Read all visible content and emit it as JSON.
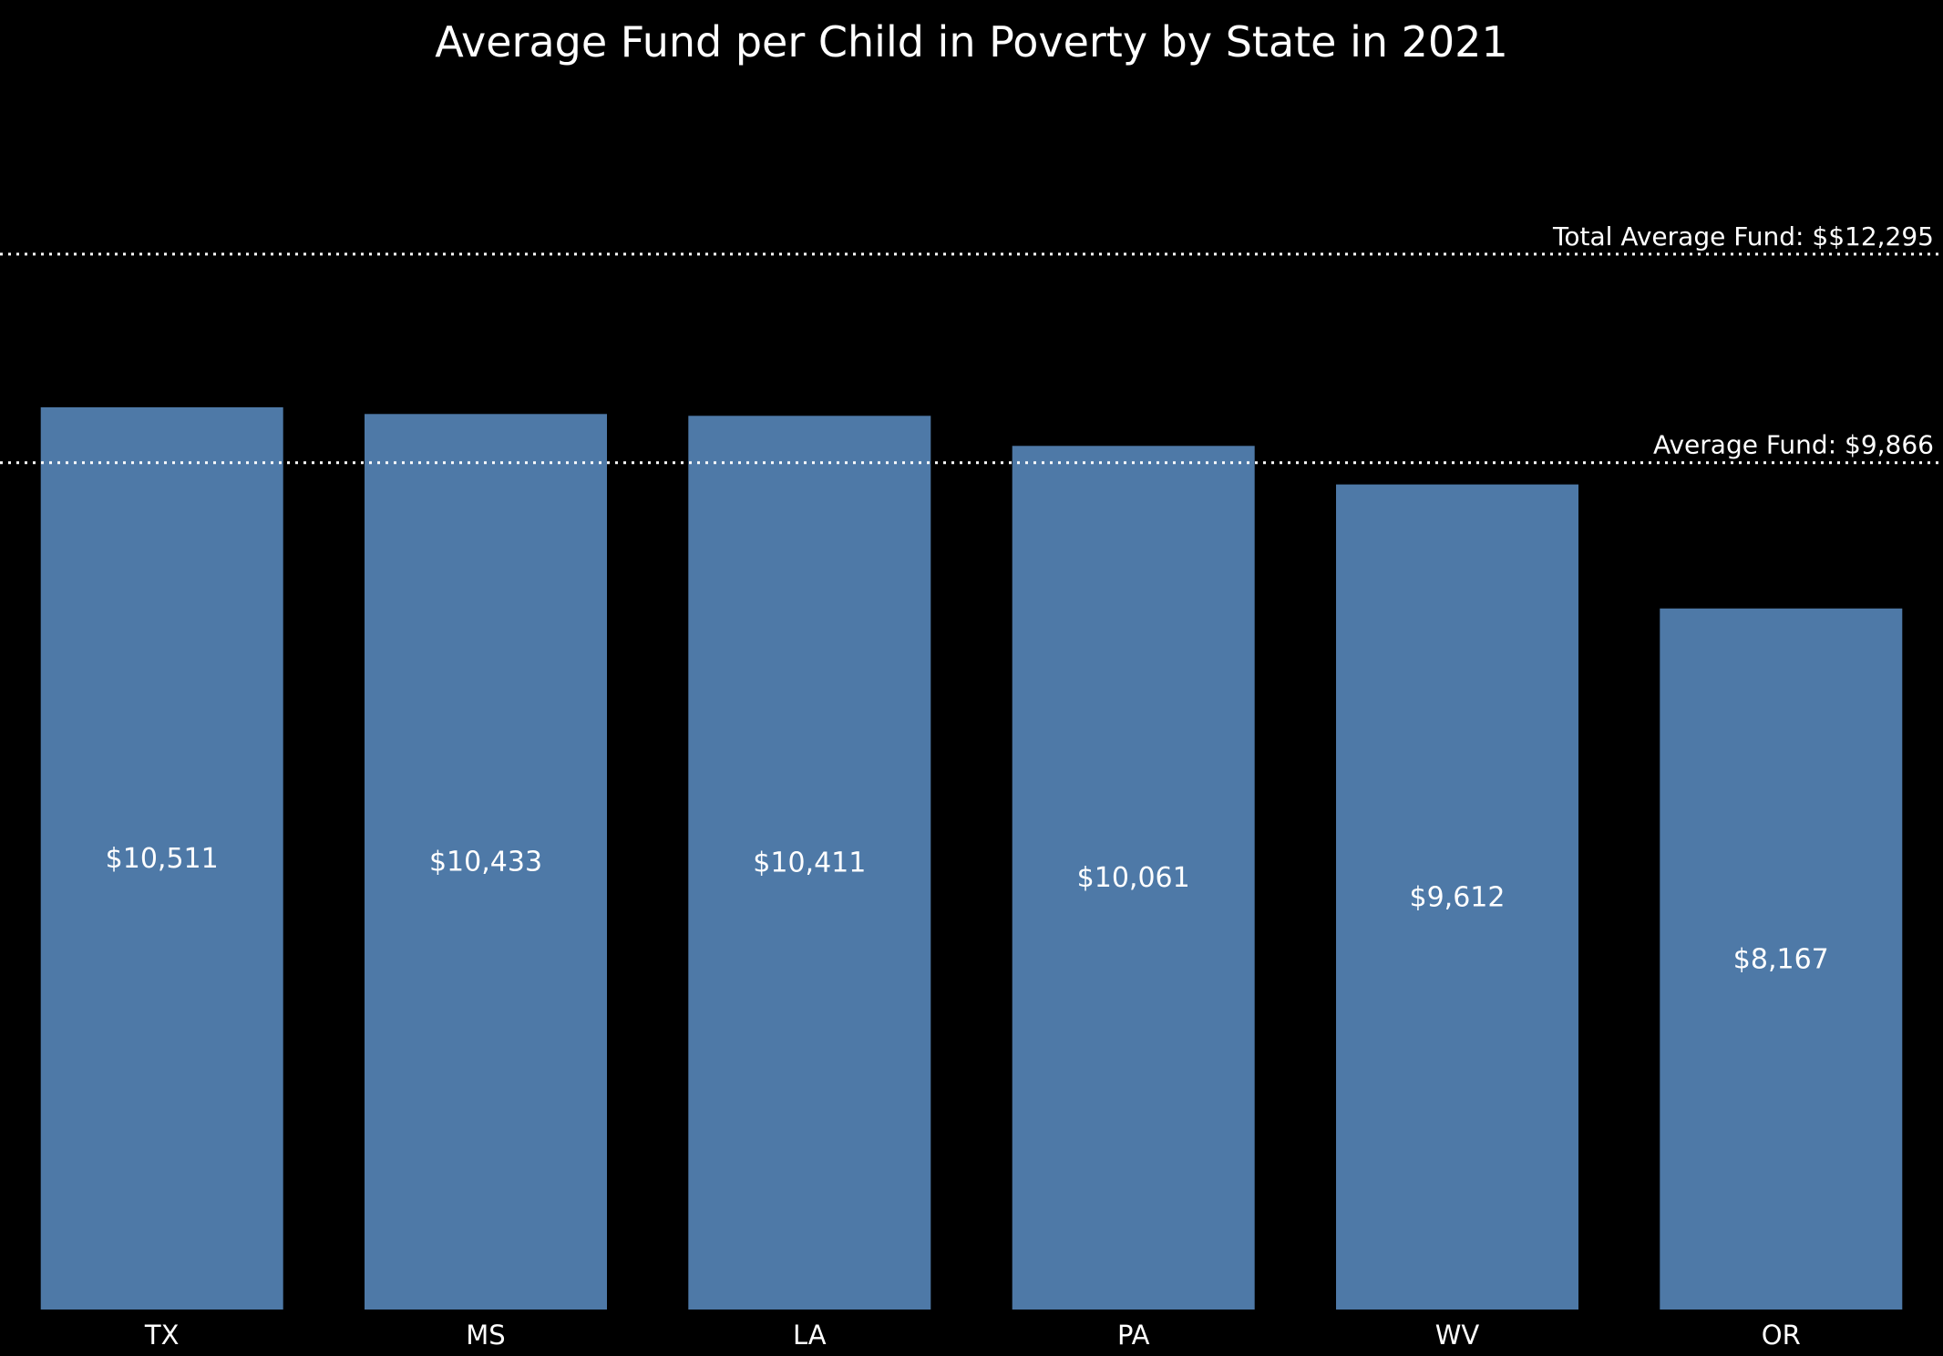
{
  "chart_data": {
    "type": "bar",
    "title": "Average Fund per Child in Poverty by State in 2021",
    "xlabel": "",
    "ylabel": "",
    "categories": [
      "TX",
      "MS",
      "LA",
      "PA",
      "WV",
      "OR"
    ],
    "values": [
      10511,
      10433,
      10411,
      10061,
      9612,
      8167
    ],
    "data_labels": [
      "$10,511",
      "$10,433",
      "$10,411",
      "$10,061",
      "$9,612",
      "$8,167"
    ],
    "ylim": [
      0,
      14300
    ],
    "grid": false,
    "reference_lines": [
      {
        "label": "Total Average Fund: $$12,295",
        "value": 12295,
        "style": "dotted"
      },
      {
        "label": "Average Fund: $9,866",
        "value": 9866,
        "style": "dotted"
      }
    ],
    "colors": {
      "background": "#000000",
      "bar": "#4e79a7",
      "text": "#ffffff",
      "reference_line": "#ffffff"
    }
  }
}
